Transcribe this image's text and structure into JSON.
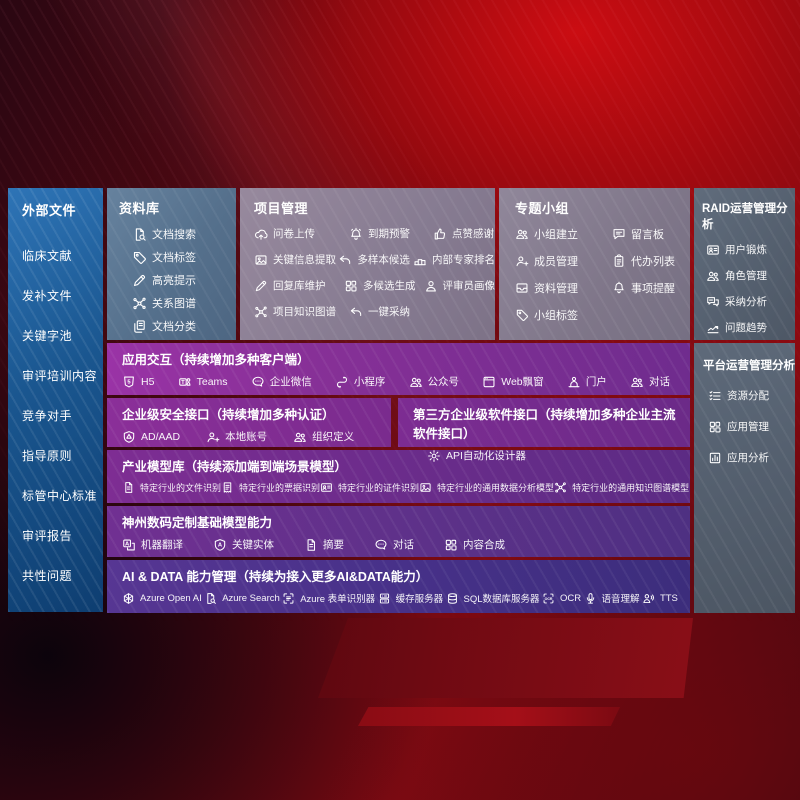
{
  "colors": {
    "background_red": "#b40d13",
    "sidebar_blue": "#1a568f",
    "panel_bluegray": "#55708c",
    "panel_mauve": "#867b91",
    "panel_slate": "#545f6e",
    "band_magenta": "#873097",
    "band_indigo": "#473189"
  },
  "sidebar": {
    "title": "外部文件",
    "items": [
      "临床文献",
      "发补文件",
      "关键字池",
      "审评培训内容",
      "竞争对手",
      "指导原则",
      "标管中心标准",
      "审评报告",
      "共性问题"
    ]
  },
  "library": {
    "title": "资料库",
    "items": [
      {
        "icon": "doc-search",
        "label": "文档搜索"
      },
      {
        "icon": "doc-tag",
        "label": "文档标签"
      },
      {
        "icon": "highlight-pen",
        "label": "高亮提示"
      },
      {
        "icon": "relation-graph",
        "label": "关系图谱"
      },
      {
        "icon": "doc-category",
        "label": "文档分类"
      }
    ]
  },
  "project": {
    "title": "项目管理",
    "rows": [
      [
        {
          "icon": "cloud-upload",
          "label": "问卷上传"
        },
        {
          "icon": "due-alarm",
          "label": "到期预警"
        },
        {
          "icon": "thumbs-up",
          "label": "点赞感谢"
        }
      ],
      [
        {
          "icon": "info-extract",
          "label": "关键信息提取"
        },
        {
          "icon": "multi-sample",
          "label": "多样本候选"
        },
        {
          "icon": "expert-rank",
          "label": "内部专家排名"
        }
      ],
      [
        {
          "icon": "reply-maintain",
          "label": "回复库维护"
        },
        {
          "icon": "multi-generate",
          "label": "多候选生成"
        },
        {
          "icon": "reviewer-profile",
          "label": "评审员画像"
        }
      ],
      [
        {
          "icon": "project-graph",
          "label": "项目知识图谱"
        },
        {
          "icon": "one-click-adopt",
          "label": "一键采纳"
        }
      ]
    ]
  },
  "groups": {
    "title": "专题小组",
    "rows": [
      [
        {
          "icon": "team-create",
          "label": "小组建立"
        },
        {
          "icon": "bbs-board",
          "label": "留言板"
        }
      ],
      [
        {
          "icon": "member-manage",
          "label": "成员管理"
        },
        {
          "icon": "todo-list",
          "label": "代办列表"
        }
      ],
      [
        {
          "icon": "file-manage",
          "label": "资料管理"
        },
        {
          "icon": "remind-bell",
          "label": "事项提醒"
        }
      ],
      [
        {
          "icon": "group-tag",
          "label": "小组标签"
        }
      ]
    ]
  },
  "raid": {
    "title": "RAID运营管理分析",
    "items": [
      {
        "icon": "user-card",
        "label": "用户锻炼"
      },
      {
        "icon": "role-manage",
        "label": "角色管理"
      },
      {
        "icon": "adopt-analysis",
        "label": "采纳分析"
      },
      {
        "icon": "issue-trend",
        "label": "问题趋势"
      }
    ]
  },
  "platform": {
    "title": "平台运营管理分析",
    "items": [
      {
        "icon": "resource-list",
        "label": "资源分配"
      },
      {
        "icon": "app-manage",
        "label": "应用管理"
      },
      {
        "icon": "app-analysis",
        "label": "应用分析"
      }
    ]
  },
  "interaction": {
    "title": "应用交互（持续增加多种客户端）",
    "items": [
      {
        "icon": "h5",
        "label": "H5"
      },
      {
        "icon": "teams",
        "label": "Teams"
      },
      {
        "icon": "wechat-work",
        "label": "企业微信"
      },
      {
        "icon": "mini-program",
        "label": "小程序"
      },
      {
        "icon": "official-account",
        "label": "公众号"
      },
      {
        "icon": "web-window",
        "label": "Web飘窗"
      },
      {
        "icon": "portal",
        "label": "门户"
      },
      {
        "icon": "dialog",
        "label": "对话"
      }
    ]
  },
  "security": {
    "title": "企业级安全接口（持续增加多种认证）",
    "items": [
      {
        "icon": "ad-aad",
        "label": "AD/AAD"
      },
      {
        "icon": "local-account",
        "label": "本地账号"
      },
      {
        "icon": "org-define",
        "label": "组织定义"
      }
    ]
  },
  "thirdparty": {
    "title": "第三方企业级软件接口（持续增加多种企业主流软件接口）",
    "items": [
      {
        "icon": "api-designer",
        "label": "API自动化设计器"
      }
    ]
  },
  "models": {
    "title": "产业模型库（持续添加端到端场景模型）",
    "items": [
      {
        "icon": "file-recognition",
        "label": "特定行业的文件识别"
      },
      {
        "icon": "receipt-recognition",
        "label": "特定行业的票据识别"
      },
      {
        "icon": "certificate-recognition",
        "label": "特定行业的证件识别"
      },
      {
        "icon": "data-analysis-model",
        "label": "特定行业的通用数据分析模型"
      },
      {
        "icon": "knowledge-graph-model",
        "label": "特定行业的通用知识图谱模型"
      }
    ]
  },
  "base_models": {
    "title": "神州数码定制基础模型能力",
    "items": [
      {
        "icon": "machine-translate",
        "label": "机器翻译"
      },
      {
        "icon": "key-entity",
        "label": "关键实体"
      },
      {
        "icon": "summary",
        "label": "摘要"
      },
      {
        "icon": "dialog-chat",
        "label": "对话"
      },
      {
        "icon": "content-compose",
        "label": "内容合成"
      }
    ]
  },
  "ai_data": {
    "title": "AI & DATA 能力管理（持续为接入更多AI&DATA能力）",
    "items": [
      {
        "icon": "azure-openai",
        "label": "Azure Open AI"
      },
      {
        "icon": "azure-search",
        "label": "Azure Search"
      },
      {
        "icon": "form-recognizer",
        "label": "Azure 表单识别器"
      },
      {
        "icon": "cache-server",
        "label": "缓存服务器"
      },
      {
        "icon": "sql-server",
        "label": "SQL数据库服务器"
      },
      {
        "icon": "ocr",
        "label": "OCR"
      },
      {
        "icon": "speech",
        "label": "语音理解"
      },
      {
        "icon": "tts",
        "label": "TTS"
      }
    ]
  }
}
